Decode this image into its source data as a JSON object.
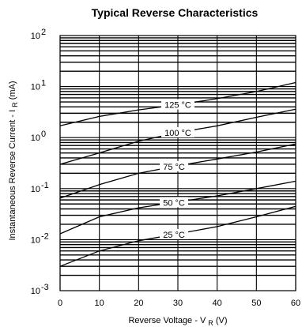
{
  "chart_data": {
    "type": "line",
    "title": "Typical Reverse Characteristics",
    "xlabel": {
      "main": "Reverse Voltage - V",
      "sub": "R",
      "unit": " (V)"
    },
    "ylabel": {
      "main": "Instantaneous Reverse Current - I",
      "sub": "R",
      "unit": " (mA)"
    },
    "xlim": [
      0,
      60
    ],
    "ylim": [
      0.001,
      100
    ],
    "yscale": "log",
    "grid": true,
    "x_ticks": [
      "0",
      "10",
      "20",
      "30",
      "40",
      "50",
      "60"
    ],
    "y_ticks": [
      {
        "base": "10",
        "exp": "-3"
      },
      {
        "base": "10",
        "exp": "-2"
      },
      {
        "base": "10",
        "exp": "-1"
      },
      {
        "base": "10",
        "exp": "0"
      },
      {
        "base": "10",
        "exp": "1"
      },
      {
        "base": "10",
        "exp": "2"
      }
    ],
    "series": [
      {
        "name": "125 °C",
        "x": [
          0,
          10,
          20,
          30,
          40,
          50,
          60
        ],
        "y": [
          1.7,
          2.6,
          3.5,
          4.4,
          5.8,
          8.0,
          12.0
        ]
      },
      {
        "name": "100 °C",
        "x": [
          0,
          10,
          20,
          30,
          40,
          50,
          60
        ],
        "y": [
          0.3,
          0.5,
          0.85,
          1.25,
          1.7,
          2.5,
          3.6
        ]
      },
      {
        "name": "75 °C",
        "x": [
          0,
          10,
          20,
          30,
          40,
          50,
          60
        ],
        "y": [
          0.065,
          0.12,
          0.2,
          0.28,
          0.38,
          0.52,
          0.75
        ]
      },
      {
        "name": "50 °C",
        "x": [
          0,
          10,
          20,
          30,
          40,
          50,
          60
        ],
        "y": [
          0.013,
          0.028,
          0.042,
          0.055,
          0.072,
          0.1,
          0.14
        ]
      },
      {
        "name": "25 °C",
        "x": [
          0,
          10,
          20,
          30,
          40,
          50,
          60
        ],
        "y": [
          0.003,
          0.006,
          0.0095,
          0.013,
          0.018,
          0.028,
          0.045
        ]
      }
    ],
    "label_positions": [
      {
        "series": "125 °C",
        "x": 30
      },
      {
        "series": "100 °C",
        "x": 30
      },
      {
        "series": "75 °C",
        "x": 29
      },
      {
        "series": "50 °C",
        "x": 29
      },
      {
        "series": "25 °C",
        "x": 29
      }
    ]
  }
}
